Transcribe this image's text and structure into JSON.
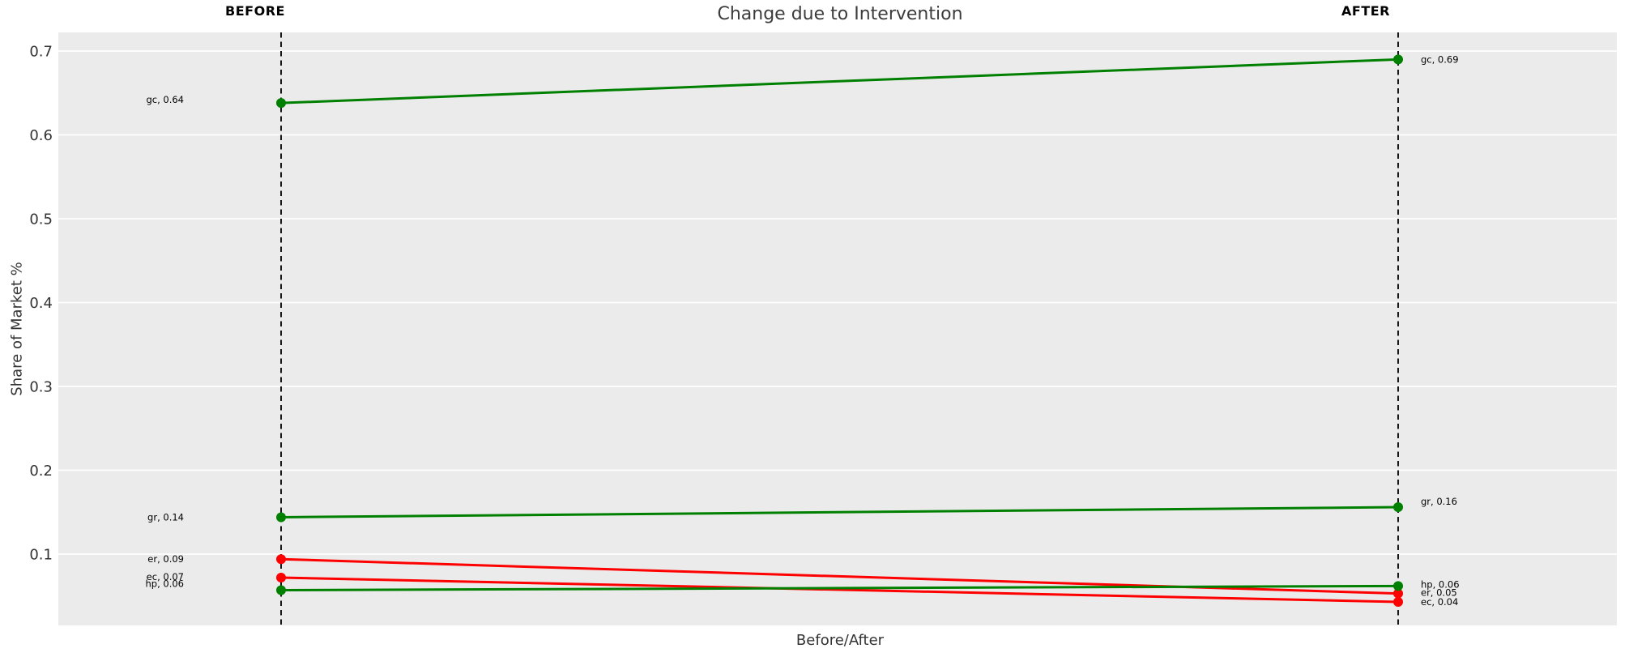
{
  "chart_data": {
    "type": "line",
    "variant": "slopegraph",
    "title": "Change due to Intervention",
    "xlabel": "Before/After",
    "ylabel": "Share of Market %",
    "categories": [
      "BEFORE",
      "AFTER"
    ],
    "y_ticks": [
      0.1,
      0.2,
      0.3,
      0.4,
      0.5,
      0.6,
      0.7
    ],
    "ylim": [
      0.015,
      0.722
    ],
    "grid": "horizontal-major-only",
    "legend": "none",
    "panel_bg": "#EBEBEB",
    "grid_color": "#FFFFFF",
    "vline_color": "#000000",
    "vline_style": "dashed",
    "increase_color": "#008000",
    "decrease_color": "#FF0000",
    "series": [
      {
        "name": "gc",
        "color": "#008000",
        "values": [
          0.64,
          0.69
        ],
        "plot_values": [
          0.638,
          0.69
        ],
        "labels": [
          "gc, 0.64",
          "gc, 0.69"
        ],
        "label_dy": [
          -4,
          0
        ]
      },
      {
        "name": "gr",
        "color": "#008000",
        "values": [
          0.14,
          0.16
        ],
        "plot_values": [
          0.144,
          0.156
        ],
        "labels": [
          "gr, 0.14",
          "gr, 0.16"
        ],
        "label_dy": [
          0,
          -7
        ]
      },
      {
        "name": "er",
        "color": "#FF0000",
        "values": [
          0.09,
          0.05
        ],
        "plot_values": [
          0.094,
          0.053
        ],
        "labels": [
          "er, 0.09",
          "er, 0.05"
        ],
        "label_dy": [
          0,
          -1
        ]
      },
      {
        "name": "ec",
        "color": "#FF0000",
        "values": [
          0.07,
          0.04
        ],
        "plot_values": [
          0.072,
          0.043
        ],
        "labels": [
          "ec, 0.07",
          "ec, 0.04"
        ],
        "label_dy": [
          -1,
          0
        ]
      },
      {
        "name": "hp",
        "color": "#008000",
        "values": [
          0.06,
          0.06
        ],
        "plot_values": [
          0.057,
          0.062
        ],
        "labels": [
          "hp, 0.06",
          "hp, 0.06"
        ],
        "label_dy": [
          -8,
          -2
        ]
      }
    ]
  }
}
